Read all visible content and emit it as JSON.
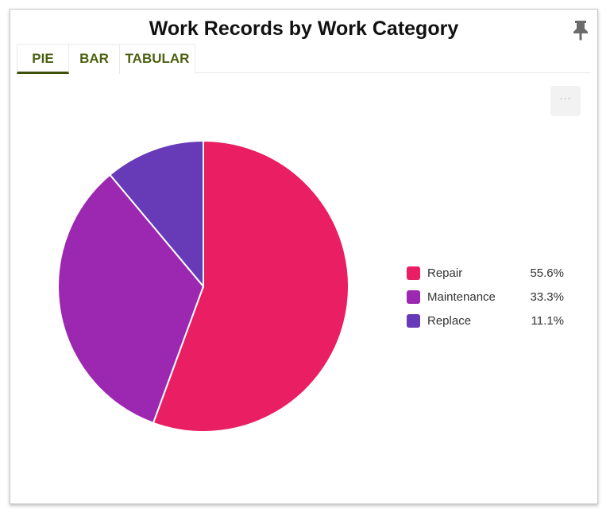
{
  "widget": {
    "title": "Work Records by Work Category",
    "pin_icon": "pin-icon",
    "more_button_label": "···",
    "tabs": [
      {
        "label": "PIE",
        "active": true
      },
      {
        "label": "BAR",
        "active": false
      },
      {
        "label": "TABULAR",
        "active": false
      }
    ]
  },
  "legend": [
    {
      "label": "Repair",
      "value": "55.6%",
      "color": "#e91e63"
    },
    {
      "label": "Maintenance",
      "value": "33.3%",
      "color": "#9c27b0"
    },
    {
      "label": "Replace",
      "value": "11.1%",
      "color": "#673ab7"
    }
  ],
  "chart_data": {
    "type": "pie",
    "title": "Work Records by Work Category",
    "categories": [
      "Repair",
      "Maintenance",
      "Replace"
    ],
    "values": [
      55.6,
      33.3,
      11.1
    ],
    "unit": "%",
    "colors": [
      "#e91e63",
      "#9c27b0",
      "#673ab7"
    ],
    "start_angle_deg": 0,
    "direction": "clockwise",
    "legend_position": "right"
  }
}
